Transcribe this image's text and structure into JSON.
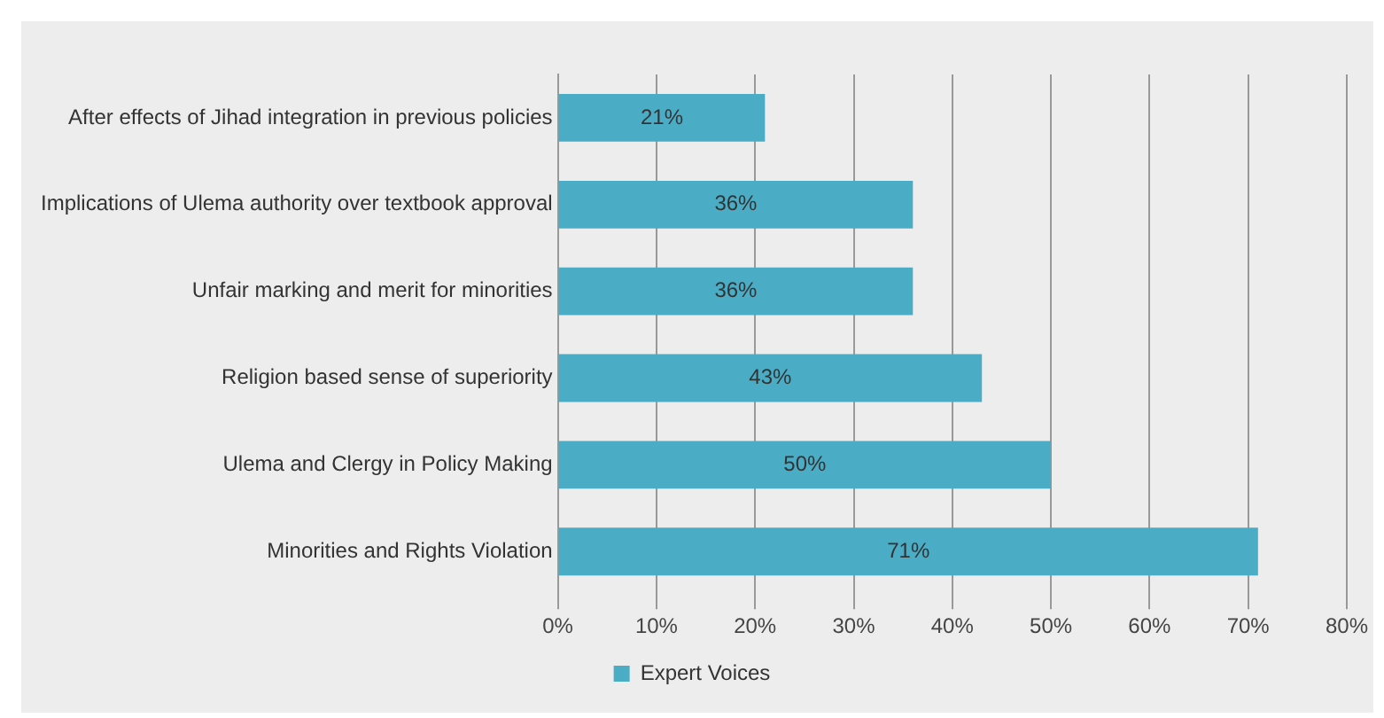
{
  "chart_data": {
    "type": "bar",
    "orientation": "horizontal",
    "categories": [
      "After effects of Jihad integration in previous policies",
      "Implications of Ulema authority over textbook approval",
      "Unfair marking and merit for minorities",
      "Religion based sense of superiority",
      "Ulema and Clergy in Policy Making",
      "Minorities and Rights Violation"
    ],
    "series": [
      {
        "name": "Expert Voices",
        "color": "#4bacc6",
        "values": [
          21,
          36,
          36,
          43,
          50,
          71
        ],
        "value_labels": [
          "21%",
          "36%",
          "36%",
          "43%",
          "50%",
          "71%"
        ]
      }
    ],
    "xlim": [
      0,
      80
    ],
    "xticks": [
      {
        "value": 0,
        "label": "0%"
      },
      {
        "value": 10,
        "label": "10%"
      },
      {
        "value": 20,
        "label": "20%"
      },
      {
        "value": 30,
        "label": "30%"
      },
      {
        "value": 40,
        "label": "40%"
      },
      {
        "value": 50,
        "label": "50%"
      },
      {
        "value": 60,
        "label": "60%"
      },
      {
        "value": 70,
        "label": "70%"
      },
      {
        "value": 80,
        "label": "80%"
      }
    ],
    "grid": "x",
    "legend": "bottom"
  }
}
